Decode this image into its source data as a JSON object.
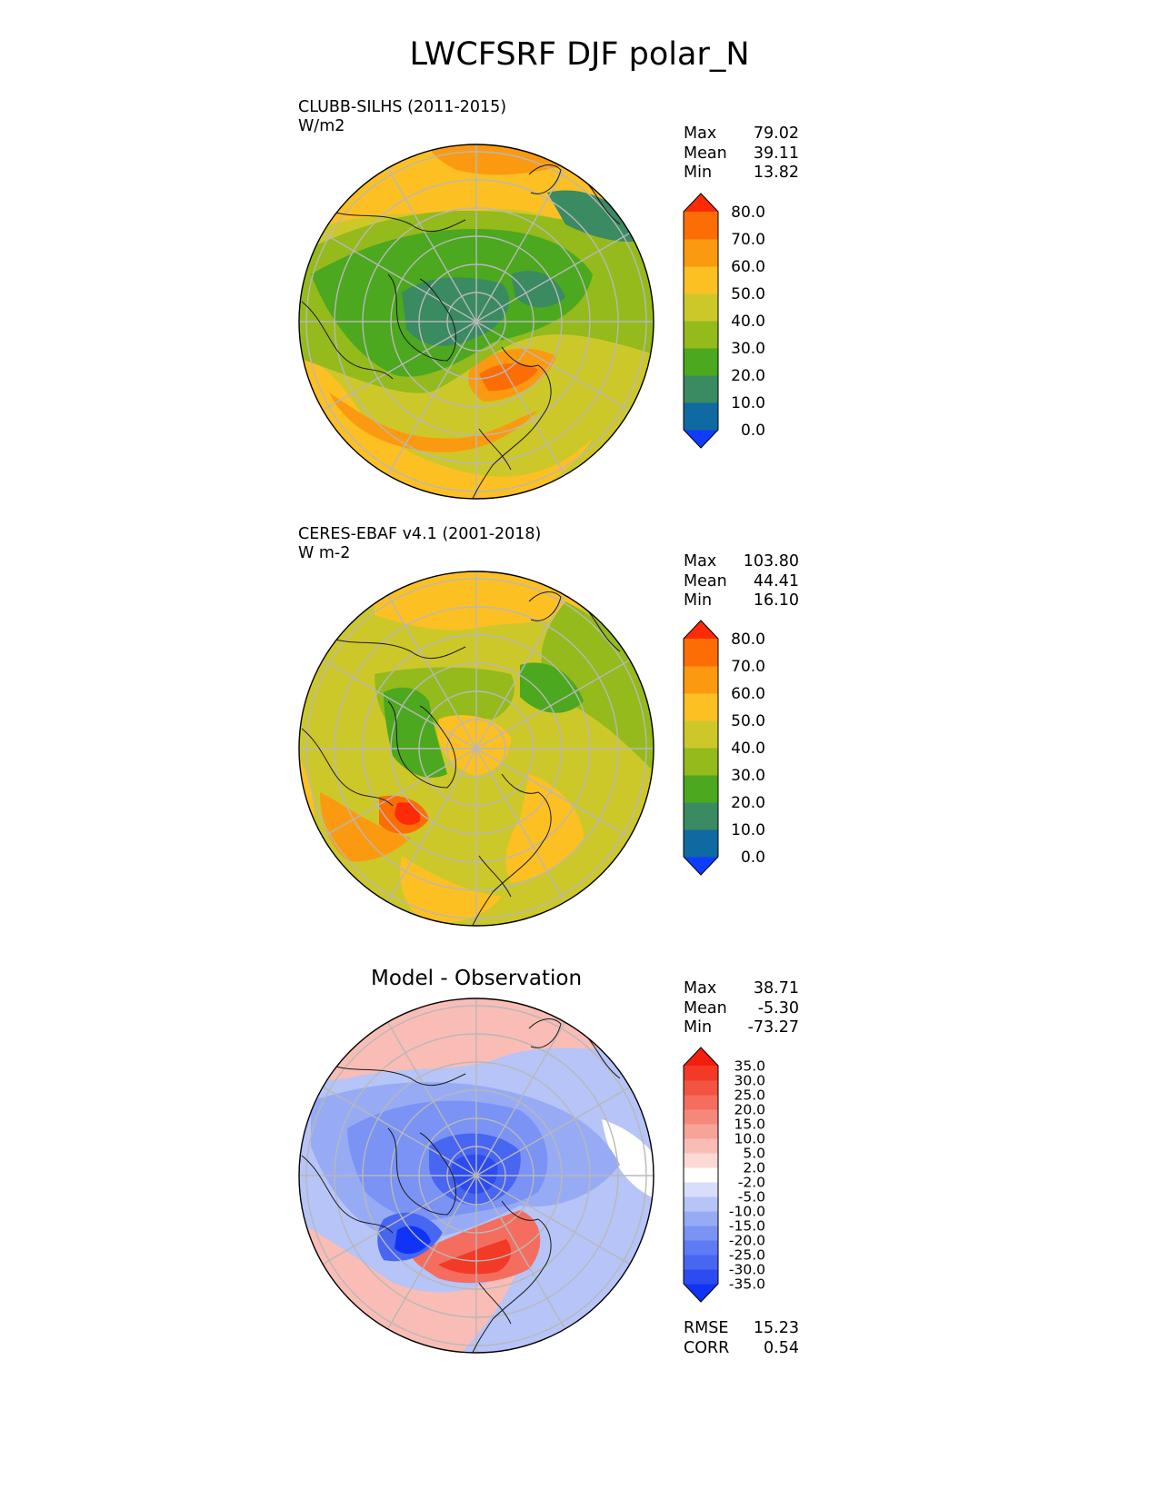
{
  "title": "LWCFSRF DJF polar_N",
  "colors": {
    "gridline": "#b8b8b8",
    "coastline": "#1a1a1a",
    "frame": "#000000"
  },
  "panels": [
    {
      "id": "test",
      "subtitle_line1": "CLUBB-SILHS (2011-2015)",
      "subtitle_line2": "W/m2",
      "center_title": "",
      "stats": [
        {
          "label": "Max",
          "value": "79.02"
        },
        {
          "label": "Mean",
          "value": "39.11"
        },
        {
          "label": "Min",
          "value": "13.82"
        }
      ],
      "colorbar": {
        "levels": [
          {
            "color": "#0f3dff",
            "label": "0.0"
          },
          {
            "color": "#0e6aa0",
            "label": "10.0"
          },
          {
            "color": "#3a8a62",
            "label": "20.0"
          },
          {
            "color": "#4ca81e",
            "label": "30.0"
          },
          {
            "color": "#94ba1c",
            "label": "40.0"
          },
          {
            "color": "#cdc82a",
            "label": "50.0"
          },
          {
            "color": "#fdc023",
            "label": "60.0"
          },
          {
            "color": "#fb9a10",
            "label": "70.0"
          },
          {
            "color": "#fd6d06",
            "label": "80.0"
          },
          {
            "color": "#ff2a08",
            "label": ""
          }
        ]
      }
    },
    {
      "id": "ref",
      "subtitle_line1": "CERES-EBAF v4.1 (2001-2018)",
      "subtitle_line2": "W m-2",
      "center_title": "",
      "stats": [
        {
          "label": "Max",
          "value": "103.80"
        },
        {
          "label": "Mean",
          "value": "44.41"
        },
        {
          "label": "Min",
          "value": "16.10"
        }
      ],
      "colorbar": {
        "levels": [
          {
            "color": "#0f3dff",
            "label": "0.0"
          },
          {
            "color": "#0e6aa0",
            "label": "10.0"
          },
          {
            "color": "#3a8a62",
            "label": "20.0"
          },
          {
            "color": "#4ca81e",
            "label": "30.0"
          },
          {
            "color": "#94ba1c",
            "label": "40.0"
          },
          {
            "color": "#cdc82a",
            "label": "50.0"
          },
          {
            "color": "#fdc023",
            "label": "60.0"
          },
          {
            "color": "#fb9a10",
            "label": "70.0"
          },
          {
            "color": "#fd6d06",
            "label": "80.0"
          },
          {
            "color": "#ff2a08",
            "label": ""
          }
        ]
      }
    },
    {
      "id": "diff",
      "subtitle_line1": "",
      "subtitle_line2": "",
      "center_title": "Model - Observation",
      "stats": [
        {
          "label": "Max",
          "value": "38.71"
        },
        {
          "label": "Mean",
          "value": "-5.30"
        },
        {
          "label": "Min",
          "value": "-73.27"
        }
      ],
      "extra_stats": [
        {
          "label": "RMSE",
          "value": "15.23"
        },
        {
          "label": "CORR",
          "value": "0.54"
        }
      ],
      "colorbar": {
        "levels": [
          {
            "color": "#1034f5",
            "label": "-35.0"
          },
          {
            "color": "#2c4cf2",
            "label": "-30.0"
          },
          {
            "color": "#4766f2",
            "label": "-25.0"
          },
          {
            "color": "#5e7bf3",
            "label": "-20.0"
          },
          {
            "color": "#7a93f4",
            "label": "-15.0"
          },
          {
            "color": "#97abf5",
            "label": "-10.0"
          },
          {
            "color": "#b6c4f7",
            "label": "-5.0"
          },
          {
            "color": "#d7defa",
            "label": "-2.0"
          },
          {
            "color": "#ffffff",
            "label": "2.0"
          },
          {
            "color": "#fbd9d5",
            "label": "5.0"
          },
          {
            "color": "#f9bdb6",
            "label": "10.0"
          },
          {
            "color": "#f8a398",
            "label": "15.0"
          },
          {
            "color": "#f6887b",
            "label": "20.0"
          },
          {
            "color": "#f56d5e",
            "label": "25.0"
          },
          {
            "color": "#f35341",
            "label": "30.0"
          },
          {
            "color": "#f23a26",
            "label": "35.0"
          },
          {
            "color": "#f51d0c",
            "label": ""
          }
        ]
      }
    }
  ]
}
